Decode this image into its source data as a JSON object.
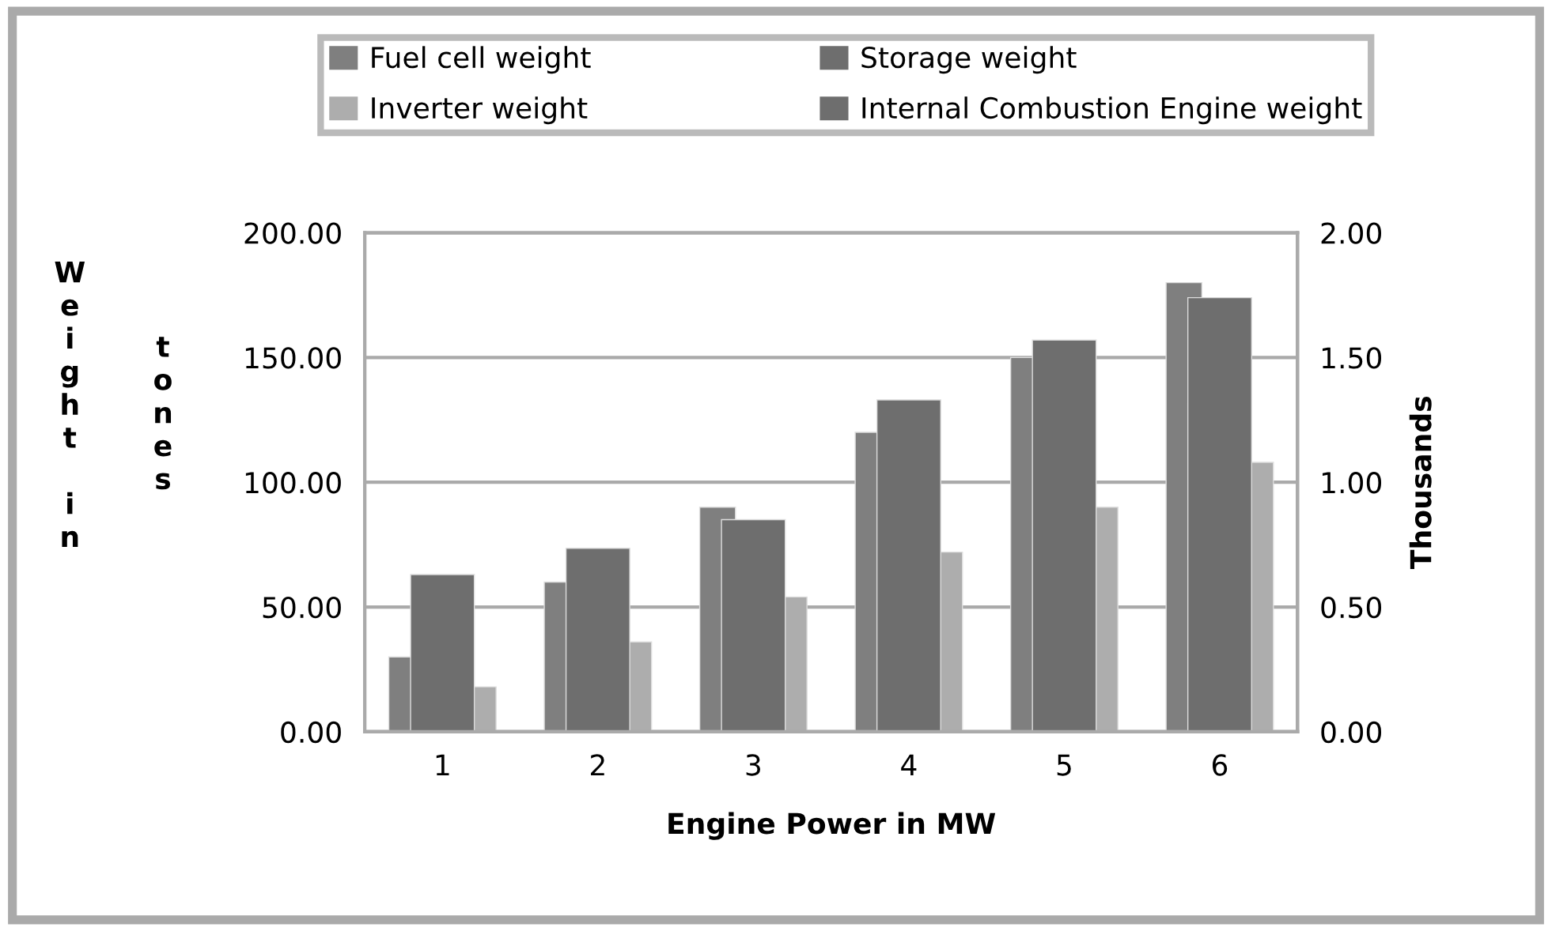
{
  "chart_data": {
    "type": "bar",
    "xlabel": "Engine Power in MW",
    "ylabel": "Weight in tones",
    "y2label": "Thousands",
    "categories": [
      "1",
      "2",
      "3",
      "4",
      "5",
      "6"
    ],
    "series": [
      {
        "name": "Fuel cell weight",
        "color": "#7f7f7f",
        "values": [
          30,
          60,
          90,
          120,
          150,
          180
        ]
      },
      {
        "name": "Storage weight",
        "color": "#6e6e6e",
        "values": [
          null,
          null,
          null,
          null,
          null,
          null
        ]
      },
      {
        "name": "Inverter weight",
        "color": "#adadad",
        "values": [
          18,
          36,
          54,
          72,
          90,
          108
        ]
      },
      {
        "name": "Internal Combustion Engine weight",
        "color": "#6e6e6e",
        "axis": "y2",
        "values": [
          0.63,
          0.735,
          0.85,
          1.33,
          1.57,
          1.74
        ]
      }
    ],
    "ylim": [
      0,
      200
    ],
    "yticks": [
      {
        "value": 0,
        "label": "0.00"
      },
      {
        "value": 50,
        "label": "50.00"
      },
      {
        "value": 100,
        "label": "100.00"
      },
      {
        "value": 150,
        "label": "150.00"
      },
      {
        "value": 200,
        "label": "200.00"
      }
    ],
    "y2lim": [
      0,
      2
    ],
    "y2ticks": [
      {
        "value": 0,
        "label": "0.00"
      },
      {
        "value": 0.5,
        "label": "0.50"
      },
      {
        "value": 1,
        "label": "1.00"
      },
      {
        "value": 1.5,
        "label": "1.50"
      },
      {
        "value": 2,
        "label": "2.00"
      }
    ],
    "grid": "y",
    "legend": "top"
  }
}
